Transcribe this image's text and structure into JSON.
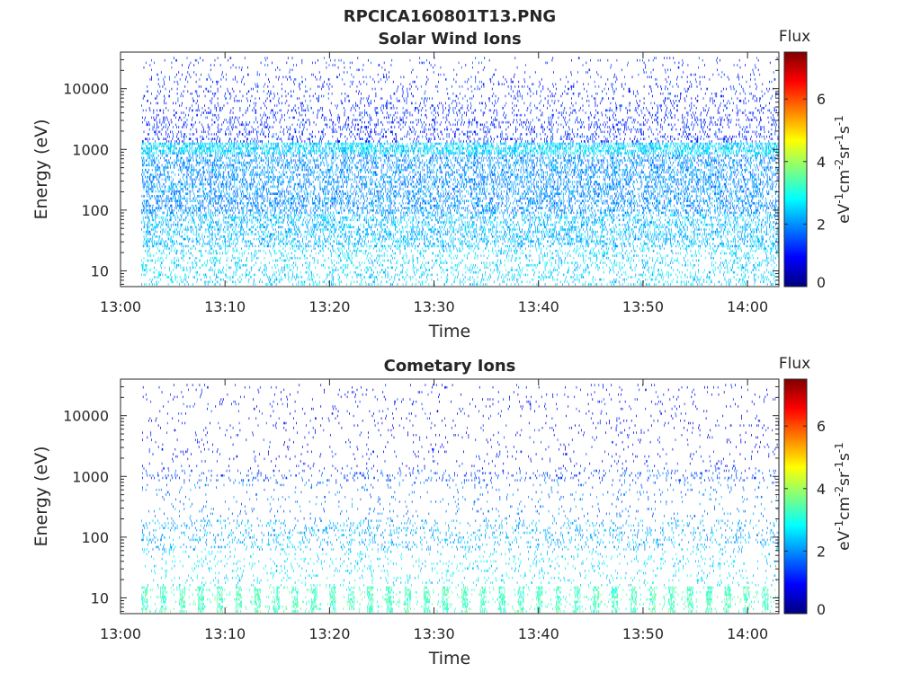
{
  "figure_title": "RPCICA160801T13.PNG",
  "colors": {
    "axis": "#262626",
    "colormap": [
      "#00007f",
      "#0000ff",
      "#007fff",
      "#00ffff",
      "#7fff7f",
      "#ffff00",
      "#ff7f00",
      "#ff0000",
      "#7f0000"
    ]
  },
  "chart_data": [
    {
      "type": "heatmap",
      "title": "Solar Wind Ions",
      "xlabel": "Time",
      "ylabel": "Energy (eV)",
      "x_ticks": [
        "13:00",
        "13:10",
        "13:20",
        "13:30",
        "13:40",
        "13:50",
        "14:00"
      ],
      "xlim": [
        "13:00",
        "14:03"
      ],
      "y_scale": "log",
      "y_ticks": [
        10,
        100,
        1000,
        10000
      ],
      "y_tick_labels": [
        "10",
        "100",
        "1000",
        "10000"
      ],
      "ylim": [
        5.5,
        40000
      ],
      "colorbar": {
        "label": "Flux",
        "unit": "eV-1 cm-2 sr-1 s-1",
        "range": [
          0,
          7.5
        ],
        "ticks": [
          0,
          2,
          4,
          6
        ]
      },
      "data_start": "13:02",
      "data_end": "14:03",
      "typical_flux": {
        "10-100 eV": 2.5,
        "100-800 eV": 2.0,
        "1000 eV": 2.5,
        "1000-30000 eV": 1.2
      },
      "density": "dense"
    },
    {
      "type": "heatmap",
      "title": "Cometary Ions",
      "xlabel": "Time",
      "ylabel": "Energy (eV)",
      "x_ticks": [
        "13:00",
        "13:10",
        "13:20",
        "13:30",
        "13:40",
        "13:50",
        "14:00"
      ],
      "xlim": [
        "13:00",
        "14:03"
      ],
      "y_scale": "log",
      "y_ticks": [
        10,
        100,
        1000,
        10000
      ],
      "y_tick_labels": [
        "10",
        "100",
        "1000",
        "10000"
      ],
      "ylim": [
        5.5,
        40000
      ],
      "colorbar": {
        "label": "Flux",
        "unit": "eV-1 cm-2 sr-1 s-1",
        "range": [
          0,
          7.5
        ],
        "ticks": [
          0,
          2,
          4,
          6
        ]
      },
      "data_start": "13:02",
      "data_end": "14:03",
      "typical_flux": {
        "6-15 eV": 3.3,
        "60-200 eV": 2.2,
        "1000 eV": 1.5,
        "1000-30000 eV": 1.0
      },
      "density": "sparse"
    }
  ]
}
